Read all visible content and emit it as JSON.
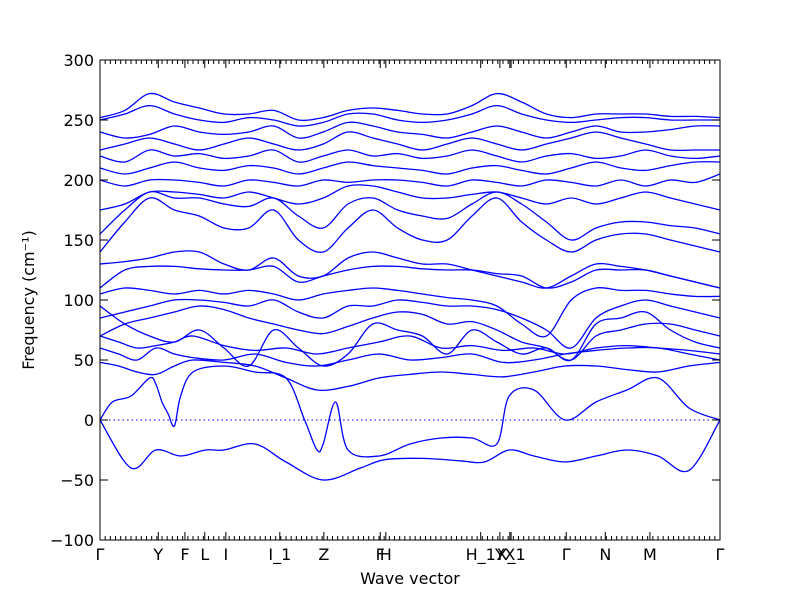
{
  "chart_data": {
    "type": "line",
    "xlabel": "Wave vector",
    "ylabel": "Frequency (cm⁻¹)",
    "ylim": [
      -100,
      300
    ],
    "yticks": [
      -100,
      -50,
      0,
      50,
      100,
      150,
      200,
      250,
      300
    ],
    "xlim": [
      0,
      1
    ],
    "xticks": [
      {
        "label": "Γ",
        "x": 0.0
      },
      {
        "label": "Y",
        "x": 0.094
      },
      {
        "label": "F",
        "x": 0.137
      },
      {
        "label": "L",
        "x": 0.169
      },
      {
        "label": "I",
        "x": 0.203
      },
      {
        "label": "I_1",
        "x": 0.29
      },
      {
        "label": "Z",
        "x": 0.361
      },
      {
        "label": "F",
        "x": 0.452
      },
      {
        "label": "H",
        "x": 0.461
      },
      {
        "label": "H_1",
        "x": 0.614
      },
      {
        "label": "Y",
        "x": 0.645
      },
      {
        "label": "X",
        "x": 0.661
      },
      {
        "label": "X_1",
        "x": 0.663
      },
      {
        "label": "Γ",
        "x": 0.752
      },
      {
        "label": "N",
        "x": 0.815
      },
      {
        "label": "M",
        "x": 0.887
      },
      {
        "label": "Γ",
        "x": 1.0
      }
    ],
    "zero_line": 0,
    "series": [
      {
        "x": [
          0,
          0.05,
          0.09,
          0.13,
          0.17,
          0.2,
          0.25,
          0.3,
          0.36,
          0.42,
          0.46,
          0.52,
          0.58,
          0.62,
          0.66,
          0.7,
          0.75,
          0.8,
          0.85,
          0.9,
          0.95,
          1.0
        ],
        "y": [
          0,
          -40,
          -25,
          -30,
          -25,
          -25,
          -20,
          -35,
          -50,
          -40,
          -33,
          -32,
          -34,
          -35,
          -25,
          -30,
          -35,
          -30,
          -25,
          -30,
          -42,
          0
        ]
      },
      {
        "x": [
          0,
          0.02,
          0.05,
          0.08,
          0.09,
          0.1,
          0.11,
          0.12,
          0.13,
          0.15,
          0.2,
          0.25,
          0.3,
          0.33,
          0.35,
          0.36,
          0.38,
          0.4,
          0.45,
          0.5,
          0.55,
          0.6,
          0.64,
          0.66,
          0.7,
          0.75,
          0.8,
          0.85,
          0.9,
          0.95,
          1.0
        ],
        "y": [
          0,
          15,
          20,
          35,
          30,
          15,
          5,
          -5,
          20,
          40,
          45,
          40,
          35,
          0,
          -25,
          -20,
          15,
          -25,
          -30,
          -20,
          -15,
          -15,
          -20,
          20,
          25,
          0,
          15,
          25,
          35,
          10,
          0
        ]
      },
      {
        "x": [
          0,
          0.03,
          0.06,
          0.09,
          0.12,
          0.15,
          0.2,
          0.25,
          0.3,
          0.35,
          0.4,
          0.45,
          0.5,
          0.55,
          0.6,
          0.65,
          0.7,
          0.75,
          0.8,
          0.85,
          0.9,
          0.95,
          1.0
        ],
        "y": [
          48,
          45,
          40,
          38,
          45,
          50,
          48,
          45,
          35,
          25,
          28,
          35,
          38,
          40,
          38,
          36,
          40,
          45,
          45,
          42,
          40,
          45,
          48
        ]
      },
      {
        "x": [
          0,
          0.03,
          0.06,
          0.09,
          0.12,
          0.15,
          0.2,
          0.25,
          0.3,
          0.35,
          0.4,
          0.45,
          0.5,
          0.55,
          0.6,
          0.65,
          0.7,
          0.75,
          0.8,
          0.85,
          0.9,
          0.95,
          1.0
        ],
        "y": [
          60,
          55,
          50,
          60,
          55,
          52,
          50,
          55,
          48,
          45,
          50,
          55,
          50,
          52,
          55,
          48,
          50,
          55,
          58,
          60,
          60,
          55,
          50
        ]
      },
      {
        "x": [
          0,
          0.03,
          0.06,
          0.09,
          0.12,
          0.15,
          0.2,
          0.25,
          0.3,
          0.35,
          0.4,
          0.45,
          0.5,
          0.55,
          0.6,
          0.65,
          0.7,
          0.75,
          0.8,
          0.85,
          0.9,
          0.95,
          1.0
        ],
        "y": [
          70,
          65,
          60,
          62,
          65,
          70,
          62,
          58,
          60,
          55,
          60,
          65,
          70,
          60,
          62,
          58,
          60,
          55,
          60,
          62,
          60,
          58,
          55
        ]
      },
      {
        "x": [
          0,
          0.04,
          0.08,
          0.12,
          0.16,
          0.2,
          0.24,
          0.28,
          0.32,
          0.36,
          0.4,
          0.44,
          0.48,
          0.52,
          0.56,
          0.6,
          0.64,
          0.68,
          0.72,
          0.76,
          0.8,
          0.84,
          0.88,
          0.92,
          0.96,
          1.0
        ],
        "y": [
          95,
          80,
          70,
          65,
          75,
          60,
          45,
          75,
          60,
          45,
          55,
          80,
          75,
          70,
          55,
          75,
          65,
          55,
          60,
          50,
          80,
          85,
          90,
          75,
          65,
          60
        ]
      },
      {
        "x": [
          0,
          0.04,
          0.08,
          0.12,
          0.16,
          0.2,
          0.24,
          0.28,
          0.32,
          0.36,
          0.4,
          0.44,
          0.48,
          0.52,
          0.56,
          0.6,
          0.64,
          0.68,
          0.72,
          0.76,
          0.8,
          0.84,
          0.88,
          0.92,
          0.96,
          1.0
        ],
        "y": [
          70,
          80,
          85,
          90,
          95,
          92,
          85,
          80,
          75,
          72,
          78,
          85,
          90,
          88,
          80,
          82,
          75,
          65,
          60,
          50,
          70,
          75,
          80,
          80,
          75,
          70
        ]
      },
      {
        "x": [
          0,
          0.04,
          0.08,
          0.12,
          0.16,
          0.2,
          0.24,
          0.28,
          0.32,
          0.36,
          0.4,
          0.44,
          0.48,
          0.52,
          0.56,
          0.6,
          0.64,
          0.68,
          0.72,
          0.76,
          0.8,
          0.84,
          0.88,
          0.92,
          0.96,
          1.0
        ],
        "y": [
          85,
          90,
          95,
          100,
          100,
          98,
          95,
          100,
          90,
          85,
          95,
          95,
          100,
          98,
          95,
          95,
          92,
          85,
          75,
          60,
          85,
          95,
          100,
          95,
          90,
          85
        ]
      },
      {
        "x": [
          0,
          0.04,
          0.08,
          0.12,
          0.16,
          0.2,
          0.24,
          0.28,
          0.32,
          0.36,
          0.4,
          0.44,
          0.48,
          0.52,
          0.56,
          0.6,
          0.64,
          0.68,
          0.72,
          0.76,
          0.8,
          0.84,
          0.88,
          0.92,
          0.96,
          1.0
        ],
        "y": [
          105,
          110,
          108,
          105,
          108,
          105,
          108,
          105,
          100,
          105,
          108,
          110,
          108,
          105,
          102,
          100,
          95,
          80,
          70,
          100,
          110,
          108,
          108,
          105,
          103,
          103
        ]
      },
      {
        "x": [
          0,
          0.04,
          0.08,
          0.12,
          0.16,
          0.2,
          0.24,
          0.28,
          0.32,
          0.36,
          0.4,
          0.44,
          0.48,
          0.52,
          0.56,
          0.6,
          0.64,
          0.68,
          0.72,
          0.76,
          0.8,
          0.84,
          0.88,
          0.92,
          0.96,
          1.0
        ],
        "y": [
          110,
          125,
          128,
          128,
          126,
          125,
          125,
          128,
          115,
          120,
          125,
          128,
          128,
          126,
          125,
          125,
          122,
          120,
          110,
          115,
          125,
          125,
          125,
          120,
          115,
          110
        ]
      },
      {
        "x": [
          0,
          0.04,
          0.08,
          0.12,
          0.16,
          0.2,
          0.24,
          0.28,
          0.32,
          0.36,
          0.4,
          0.44,
          0.48,
          0.52,
          0.56,
          0.6,
          0.64,
          0.68,
          0.72,
          0.76,
          0.8,
          0.84,
          0.88,
          0.92,
          0.96,
          1.0
        ],
        "y": [
          130,
          132,
          135,
          140,
          140,
          130,
          125,
          135,
          120,
          120,
          135,
          140,
          135,
          130,
          130,
          125,
          120,
          115,
          110,
          120,
          130,
          128,
          125,
          120,
          115,
          110
        ]
      },
      {
        "x": [
          0,
          0.04,
          0.08,
          0.12,
          0.16,
          0.2,
          0.24,
          0.28,
          0.32,
          0.36,
          0.4,
          0.44,
          0.48,
          0.52,
          0.56,
          0.6,
          0.64,
          0.68,
          0.72,
          0.76,
          0.8,
          0.84,
          0.88,
          0.92,
          0.96,
          1.0
        ],
        "y": [
          140,
          165,
          185,
          175,
          170,
          160,
          160,
          175,
          150,
          140,
          160,
          175,
          160,
          150,
          150,
          170,
          185,
          165,
          150,
          140,
          150,
          155,
          155,
          150,
          145,
          140
        ]
      },
      {
        "x": [
          0,
          0.04,
          0.08,
          0.12,
          0.16,
          0.2,
          0.24,
          0.28,
          0.32,
          0.36,
          0.4,
          0.44,
          0.48,
          0.52,
          0.56,
          0.6,
          0.64,
          0.68,
          0.72,
          0.76,
          0.8,
          0.84,
          0.88,
          0.92,
          0.96,
          1.0
        ],
        "y": [
          155,
          175,
          190,
          185,
          185,
          180,
          178,
          185,
          170,
          160,
          180,
          185,
          175,
          170,
          168,
          180,
          190,
          180,
          165,
          150,
          160,
          165,
          165,
          162,
          160,
          155
        ]
      },
      {
        "x": [
          0,
          0.04,
          0.08,
          0.12,
          0.16,
          0.2,
          0.24,
          0.28,
          0.32,
          0.36,
          0.4,
          0.44,
          0.48,
          0.52,
          0.56,
          0.6,
          0.64,
          0.68,
          0.72,
          0.76,
          0.8,
          0.84,
          0.88,
          0.92,
          0.96,
          1.0
        ],
        "y": [
          175,
          180,
          190,
          190,
          188,
          185,
          190,
          185,
          180,
          185,
          195,
          195,
          190,
          185,
          185,
          188,
          190,
          185,
          180,
          185,
          180,
          185,
          190,
          185,
          180,
          175
        ]
      },
      {
        "x": [
          0,
          0.04,
          0.08,
          0.12,
          0.16,
          0.2,
          0.24,
          0.28,
          0.32,
          0.36,
          0.4,
          0.44,
          0.48,
          0.52,
          0.56,
          0.6,
          0.64,
          0.68,
          0.72,
          0.76,
          0.8,
          0.84,
          0.88,
          0.92,
          0.96,
          1.0
        ],
        "y": [
          200,
          195,
          200,
          200,
          198,
          195,
          200,
          198,
          195,
          200,
          198,
          200,
          200,
          198,
          195,
          200,
          198,
          195,
          200,
          198,
          195,
          200,
          195,
          200,
          198,
          205
        ]
      },
      {
        "x": [
          0,
          0.04,
          0.08,
          0.12,
          0.16,
          0.2,
          0.24,
          0.28,
          0.32,
          0.36,
          0.4,
          0.44,
          0.48,
          0.52,
          0.56,
          0.6,
          0.64,
          0.68,
          0.72,
          0.76,
          0.8,
          0.84,
          0.88,
          0.92,
          0.96,
          1.0
        ],
        "y": [
          210,
          205,
          210,
          215,
          210,
          208,
          212,
          210,
          205,
          210,
          215,
          212,
          210,
          208,
          205,
          210,
          212,
          208,
          205,
          210,
          215,
          210,
          208,
          212,
          215,
          215
        ]
      },
      {
        "x": [
          0,
          0.04,
          0.08,
          0.12,
          0.16,
          0.2,
          0.24,
          0.28,
          0.32,
          0.36,
          0.4,
          0.44,
          0.48,
          0.52,
          0.56,
          0.6,
          0.64,
          0.68,
          0.72,
          0.76,
          0.8,
          0.84,
          0.88,
          0.92,
          0.96,
          1.0
        ],
        "y": [
          220,
          215,
          225,
          220,
          222,
          218,
          220,
          225,
          215,
          220,
          225,
          220,
          222,
          218,
          220,
          225,
          220,
          215,
          220,
          222,
          218,
          220,
          225,
          220,
          218,
          220
        ]
      },
      {
        "x": [
          0,
          0.04,
          0.08,
          0.12,
          0.16,
          0.2,
          0.24,
          0.28,
          0.32,
          0.36,
          0.4,
          0.44,
          0.48,
          0.52,
          0.56,
          0.6,
          0.64,
          0.68,
          0.72,
          0.76,
          0.8,
          0.84,
          0.88,
          0.92,
          0.96,
          1.0
        ],
        "y": [
          225,
          230,
          235,
          230,
          225,
          230,
          235,
          230,
          225,
          230,
          240,
          235,
          230,
          225,
          230,
          235,
          230,
          225,
          230,
          235,
          240,
          235,
          230,
          225,
          225,
          225
        ]
      },
      {
        "x": [
          0,
          0.04,
          0.08,
          0.12,
          0.16,
          0.2,
          0.24,
          0.28,
          0.32,
          0.36,
          0.4,
          0.44,
          0.48,
          0.52,
          0.56,
          0.6,
          0.64,
          0.68,
          0.72,
          0.76,
          0.8,
          0.84,
          0.88,
          0.92,
          0.96,
          1.0
        ],
        "y": [
          240,
          235,
          238,
          245,
          240,
          238,
          240,
          245,
          235,
          240,
          248,
          245,
          240,
          238,
          235,
          240,
          245,
          240,
          235,
          240,
          245,
          240,
          240,
          242,
          245,
          245
        ]
      },
      {
        "x": [
          0,
          0.04,
          0.08,
          0.12,
          0.16,
          0.2,
          0.24,
          0.28,
          0.32,
          0.36,
          0.4,
          0.44,
          0.48,
          0.52,
          0.56,
          0.6,
          0.64,
          0.68,
          0.72,
          0.76,
          0.8,
          0.84,
          0.88,
          0.92,
          0.96,
          1.0
        ],
        "y": [
          250,
          255,
          262,
          255,
          250,
          248,
          252,
          250,
          245,
          248,
          255,
          255,
          250,
          248,
          250,
          255,
          262,
          255,
          250,
          248,
          250,
          252,
          252,
          250,
          250,
          250
        ]
      },
      {
        "x": [
          0,
          0.04,
          0.08,
          0.12,
          0.16,
          0.2,
          0.24,
          0.28,
          0.32,
          0.36,
          0.4,
          0.44,
          0.48,
          0.52,
          0.56,
          0.6,
          0.64,
          0.68,
          0.72,
          0.76,
          0.8,
          0.84,
          0.88,
          0.92,
          0.96,
          1.0
        ],
        "y": [
          252,
          258,
          272,
          265,
          260,
          255,
          255,
          258,
          250,
          252,
          258,
          260,
          258,
          255,
          255,
          262,
          272,
          265,
          255,
          252,
          255,
          255,
          255,
          253,
          253,
          252
        ]
      }
    ]
  }
}
